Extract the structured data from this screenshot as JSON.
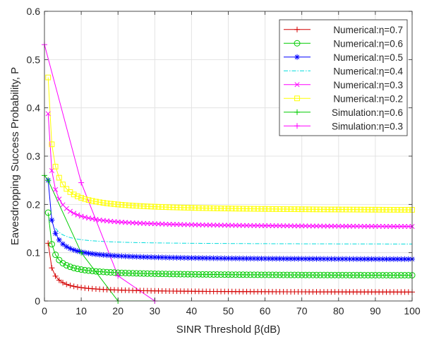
{
  "chart_data": {
    "type": "line",
    "xlabel": "SINR Threshold β(dB)",
    "ylabel": "Eavesdropping Success Probability, P",
    "xlim": [
      0,
      100
    ],
    "ylim": [
      0,
      0.6
    ],
    "xticks": [
      0,
      10,
      20,
      30,
      40,
      50,
      60,
      70,
      80,
      90,
      100
    ],
    "yticks": [
      0,
      0.1,
      0.2,
      0.3,
      0.4,
      0.5,
      0.6
    ],
    "xtick_labels": [
      "0",
      "10",
      "20",
      "30",
      "40",
      "50",
      "60",
      "70",
      "80",
      "90",
      "100"
    ],
    "ytick_labels": [
      "0",
      "0.1",
      "0.2",
      "0.3",
      "0.4",
      "0.5",
      "0.6"
    ],
    "grid": true,
    "legend_position": "top-right",
    "curve_model": {
      "x_start": 1,
      "x_end": 100,
      "x_step": 1,
      "form": "y = base + amp / x"
    },
    "series": [
      {
        "name": "Numerical:η=0.7",
        "color": "#d40000",
        "marker": "plus",
        "line": "solid",
        "base": 0.0175,
        "amp": 0.102,
        "model": "inverse"
      },
      {
        "name": "Numerical:η=0.6",
        "color": "#00cc00",
        "marker": "circle",
        "line": "solid",
        "base": 0.052,
        "amp": 0.131,
        "model": "inverse"
      },
      {
        "name": "Numerical:η=0.5",
        "color": "#0000ff",
        "marker": "asterisk",
        "line": "solid",
        "base": 0.085,
        "amp": 0.165,
        "model": "inverse"
      },
      {
        "name": "Numerical:η=0.4",
        "color": "#00dcdc",
        "marker": "none",
        "line": "dashdot",
        "base": 0.117,
        "amp": 0.1,
        "model": "inverse",
        "x_min": 3
      },
      {
        "name": "Numerical:η=0.3",
        "color": "#ff00ff",
        "marker": "x",
        "line": "solid",
        "base": 0.152,
        "amp": 0.236,
        "model": "inverse"
      },
      {
        "name": "Numerical:η=0.2",
        "color": "#ffff00",
        "marker": "square",
        "line": "solid",
        "base": 0.186,
        "amp": 0.277,
        "model": "inverse"
      },
      {
        "name": "Simulation:η=0.6",
        "color": "#00cc00",
        "marker": "plus",
        "line": "solid",
        "model": "points",
        "x": [
          0,
          1,
          10,
          20,
          30
        ],
        "y": [
          0.26,
          0.25,
          0.1,
          0,
          0
        ]
      },
      {
        "name": "Simulation:η=0.3",
        "color": "#ff00ff",
        "marker": "plus",
        "line": "solid",
        "model": "points",
        "x": [
          0,
          10,
          20,
          30
        ],
        "y": [
          0.531,
          0.245,
          0.052,
          0
        ]
      }
    ]
  }
}
